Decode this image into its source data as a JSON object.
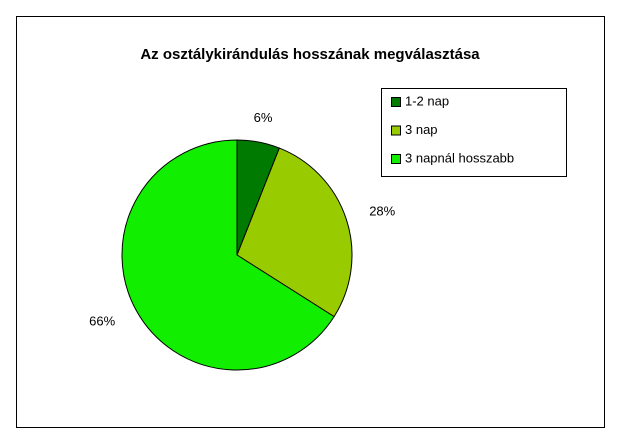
{
  "chart_data": {
    "type": "pie",
    "title": "Az osztálykirándulás hosszának megválasztása",
    "categories": [
      "1-2 nap",
      "3 nap",
      "3 napnál hosszabb"
    ],
    "values": [
      6,
      28,
      66
    ],
    "value_labels": [
      "6%",
      "28%",
      "66%"
    ],
    "colors": [
      "#007a00",
      "#99cc00",
      "#11ee00"
    ],
    "legend": "upper right"
  }
}
